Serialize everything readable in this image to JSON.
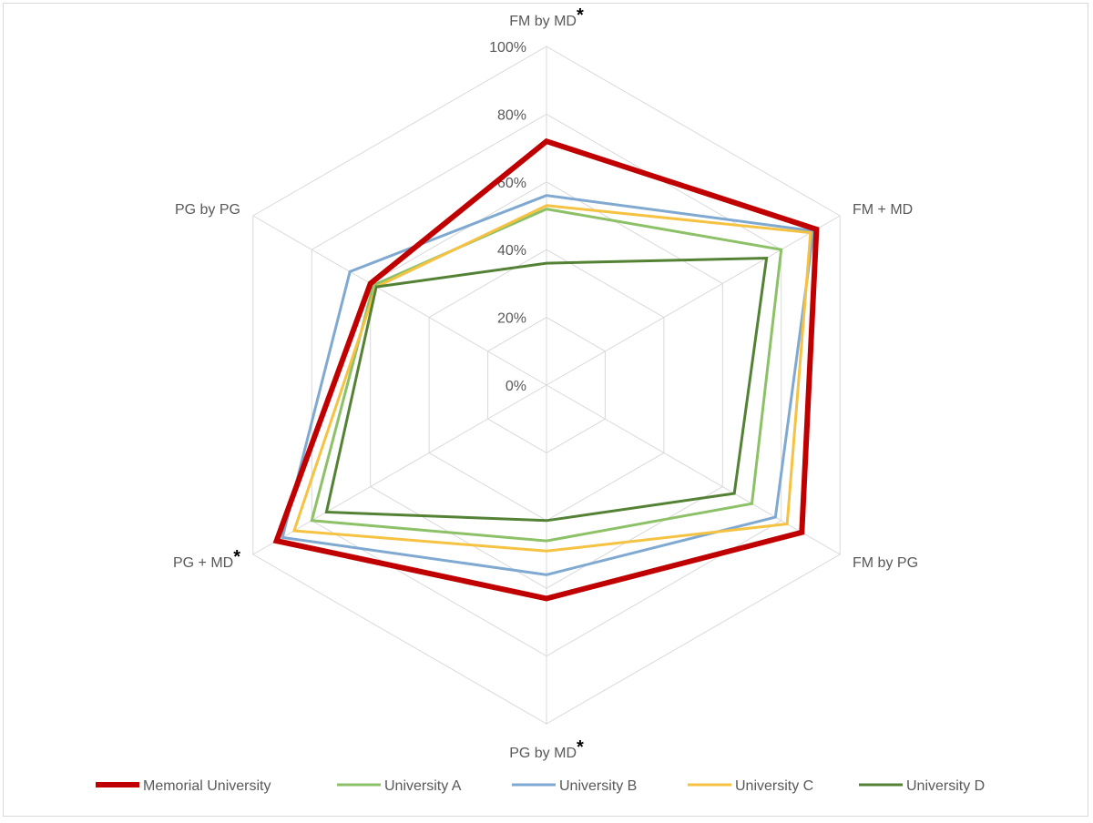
{
  "chart_data": {
    "type": "radar",
    "axes": [
      {
        "label": "FM by MD",
        "marker": "*"
      },
      {
        "label": "FM + MD",
        "marker": ""
      },
      {
        "label": "FM by PG",
        "marker": ""
      },
      {
        "label": "PG by MD",
        "marker": "*"
      },
      {
        "label": "PG + MD",
        "marker": "*"
      },
      {
        "label": "PG by PG",
        "marker": ""
      }
    ],
    "tick_labels": [
      "0%",
      "20%",
      "40%",
      "60%",
      "80%",
      "100%"
    ],
    "ticks": [
      0,
      20,
      40,
      60,
      80,
      100
    ],
    "rlim": [
      0,
      100
    ],
    "grid": true,
    "legend_position": "bottom",
    "series": [
      {
        "name": "Memorial University",
        "values": [
          72,
          92,
          87,
          63,
          92,
          60
        ],
        "color": "#c00000",
        "emphasis": true
      },
      {
        "name": "University A",
        "values": [
          52,
          80,
          70,
          46,
          80,
          59
        ],
        "color": "#8cc168",
        "emphasis": false
      },
      {
        "name": "University B",
        "values": [
          56,
          91,
          78,
          56,
          90,
          67
        ],
        "color": "#7fa9d1",
        "emphasis": false
      },
      {
        "name": "University C",
        "values": [
          53,
          90,
          82,
          49,
          86,
          58
        ],
        "color": "#f5c242",
        "emphasis": false
      },
      {
        "name": "University D",
        "values": [
          36,
          75,
          64,
          40,
          75,
          58
        ],
        "color": "#548235",
        "emphasis": false
      }
    ]
  }
}
